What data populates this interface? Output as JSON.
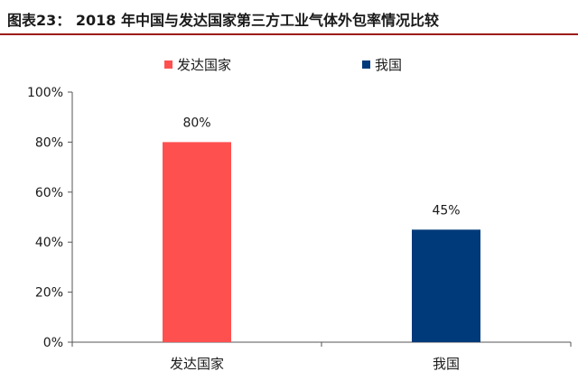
{
  "title": "图表23： 2018 年中国与发达国家第三方工业气体外包率情况比较",
  "chart_data": {
    "type": "bar",
    "categories": [
      "发达国家",
      "我国"
    ],
    "values": [
      80,
      45
    ],
    "data_labels": [
      "80%",
      "45%"
    ],
    "colors": [
      "#ff5050",
      "#003a7a"
    ],
    "ylim": [
      0,
      100
    ],
    "y_ticks": [
      0,
      20,
      40,
      60,
      80,
      100
    ],
    "y_tick_labels": [
      "0%",
      "20%",
      "40%",
      "60%",
      "80%",
      "100%"
    ],
    "legend": {
      "placement": "top",
      "entries": [
        {
          "label": "发达国家",
          "color": "#ff5050"
        },
        {
          "label": "我国",
          "color": "#003a7a"
        }
      ]
    },
    "grid": false
  }
}
